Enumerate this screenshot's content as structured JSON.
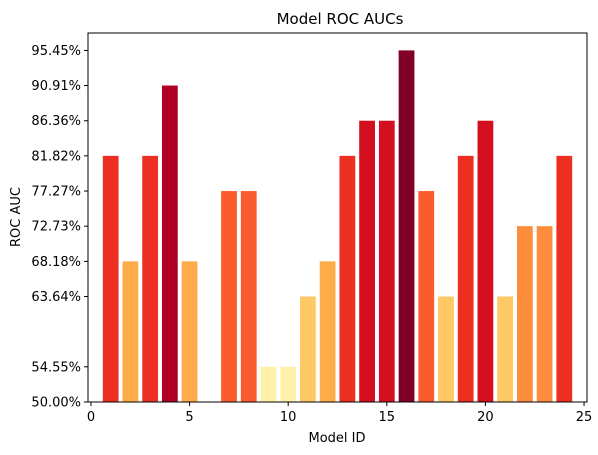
{
  "chart_data": {
    "type": "bar",
    "title": "Model ROC AUCs",
    "xlabel": "Model ID",
    "ylabel": "ROC AUC",
    "x": [
      1,
      2,
      3,
      4,
      5,
      6,
      7,
      8,
      9,
      10,
      11,
      12,
      13,
      14,
      15,
      16,
      17,
      18,
      19,
      20,
      21,
      22,
      23,
      24
    ],
    "values": [
      81.82,
      68.18,
      81.82,
      90.91,
      68.18,
      50.0,
      77.27,
      77.27,
      54.55,
      54.55,
      63.64,
      68.18,
      81.82,
      86.36,
      86.36,
      95.45,
      77.27,
      63.64,
      81.82,
      86.36,
      63.64,
      72.73,
      72.73,
      81.82
    ],
    "value_unit": "%",
    "xlim": [
      -0.15,
      25.15
    ],
    "ylim": [
      50.0,
      97.7
    ],
    "xticks": [
      0,
      5,
      10,
      15,
      20,
      25
    ],
    "yticks": [
      50.0,
      54.55,
      63.64,
      68.18,
      72.73,
      77.27,
      81.82,
      86.36,
      90.91,
      95.45
    ],
    "ytick_labels": [
      "50.00%",
      "54.55%",
      "63.64%",
      "68.18%",
      "72.73%",
      "77.27%",
      "81.82%",
      "86.36%",
      "90.91%",
      "95.45%"
    ],
    "colormap": "YlOrRd",
    "colormap_stops": [
      "#ffffcc",
      "#ffeda0",
      "#fed976",
      "#feb24c",
      "#fd8d3c",
      "#fc4e2a",
      "#e31a1c",
      "#bd0026",
      "#800026"
    ],
    "grid": false,
    "legend": "none"
  }
}
